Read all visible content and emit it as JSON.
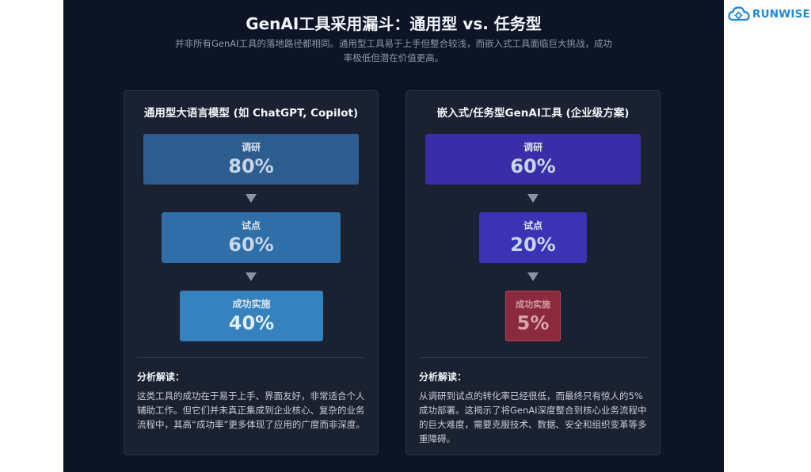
{
  "header": {
    "title": "GenAI工具采用漏斗：通用型 vs. 任务型",
    "subtitle": "并非所有GenAI工具的落地路径都相同。通用型工具易于上手但整合较浅，而嵌入式工具面临巨大挑战，成功率极低但潜在价值更高。"
  },
  "logo": {
    "text": "RUNWISE",
    "icon": "cloud-gear-icon"
  },
  "cards": [
    {
      "title": "通用型大语言模型 (如 ChatGPT, Copilot)",
      "funnel": [
        {
          "label": "调研",
          "value": "80%",
          "percent": 80
        },
        {
          "label": "试点",
          "value": "60%",
          "percent": 60
        },
        {
          "label": "成功实施",
          "value": "40%",
          "percent": 40
        }
      ],
      "analysis_title": "分析解读：",
      "analysis_text": "这类工具的成功在于易于上手、界面友好，非常适合个人辅助工作。但它们并未真正集成到企业核心、复杂的业务流程中，其高“成功率”更多体现了应用的广度而非深度。"
    },
    {
      "title": "嵌入式/任务型GenAI工具 (企业级方案)",
      "funnel": [
        {
          "label": "调研",
          "value": "60%",
          "percent": 60
        },
        {
          "label": "试点",
          "value": "20%",
          "percent": 20
        },
        {
          "label": "成功实施",
          "value": "5%",
          "percent": 5
        }
      ],
      "analysis_title": "分析解读：",
      "analysis_text": "从调研到试点的转化率已经很低，而最终只有惊人的5%成功部署。这揭示了将GenAI深度整合到核心业务流程中的巨大难度，需要克服技术、数据、安全和组织变革等多重障碍。"
    }
  ],
  "colors": {
    "left_stage_1": "#2d5d8e",
    "left_stage_2": "#2f6ea6",
    "left_stage_3": "#3682bf",
    "right_stage_1": "#392ea8",
    "right_stage_2": "#3c32b6",
    "right_stage_3": "#8a2a3c"
  }
}
